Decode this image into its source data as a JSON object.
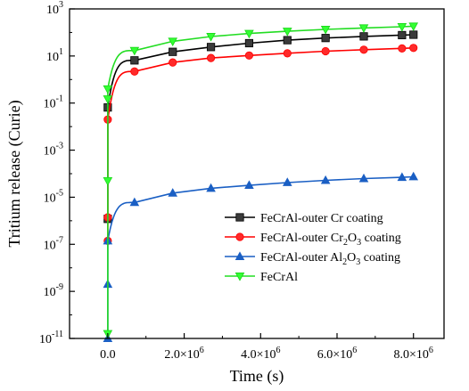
{
  "chart_data": {
    "type": "line",
    "xlabel": "Time (s)",
    "ylabel": "Tritium release (Curie)",
    "x_scale": "linear",
    "y_scale": "log",
    "xlim": [
      -1000000,
      8800000
    ],
    "ylim": [
      1e-11,
      1000
    ],
    "x_ticks": [
      {
        "value": 0,
        "mantissa": "0.0",
        "exp": ""
      },
      {
        "value": 2000000,
        "mantissa": "2.0×10",
        "exp": "6"
      },
      {
        "value": 4000000,
        "mantissa": "4.0×10",
        "exp": "6"
      },
      {
        "value": 6000000,
        "mantissa": "6.0×10",
        "exp": "6"
      },
      {
        "value": 8000000,
        "mantissa": "8.0×10",
        "exp": "6"
      }
    ],
    "y_ticks": [
      {
        "value": 1e-11,
        "base": "10",
        "exp": "-11"
      },
      {
        "value": 1e-09,
        "base": "10",
        "exp": "-9"
      },
      {
        "value": 1e-07,
        "base": "10",
        "exp": "-7"
      },
      {
        "value": 1e-05,
        "base": "10",
        "exp": "-5"
      },
      {
        "value": 0.001,
        "base": "10",
        "exp": "-3"
      },
      {
        "value": 0.1,
        "base": "10",
        "exp": "-1"
      },
      {
        "value": 10,
        "base": "10",
        "exp": "1"
      },
      {
        "value": 1000,
        "base": "10",
        "exp": "3"
      }
    ],
    "grid": false,
    "legend_position": "lower-right",
    "series": [
      {
        "name": "FeCrAl-outer Cr coating",
        "label_parts": [
          {
            "t": "FeCrAl-outer Cr coating",
            "sub": false
          }
        ],
        "color": "#000000",
        "line_color": "#000000",
        "marker_fill": "#3a3a3a",
        "marker": "square",
        "x": [
          0,
          0,
          700000,
          1700000,
          2700000,
          3700000,
          4700000,
          5700000,
          6700000,
          7700000,
          8000000
        ],
        "y": [
          1.2e-06,
          0.065,
          6.5,
          15,
          24,
          35,
          47,
          58,
          68,
          77,
          80
        ]
      },
      {
        "name": "FeCrAl-outer Cr2O3 coating",
        "label_parts": [
          {
            "t": "FeCrAl-outer Cr",
            "sub": false
          },
          {
            "t": "2",
            "sub": true
          },
          {
            "t": "O",
            "sub": false
          },
          {
            "t": "3",
            "sub": true
          },
          {
            "t": " coating",
            "sub": false
          }
        ],
        "color": "#ff0000",
        "line_color": "#ff0000",
        "marker_fill": "#ff2a2a",
        "marker": "circle",
        "x": [
          0,
          0,
          0,
          700000,
          1700000,
          2700000,
          3700000,
          4700000,
          5700000,
          6700000,
          7700000,
          8000000
        ],
        "y": [
          1.4e-07,
          1.4e-06,
          0.02,
          2.2,
          5.3,
          8.2,
          10.5,
          13,
          16,
          18.5,
          21,
          22
        ]
      },
      {
        "name": "FeCrAl-outer Al2O3 coating",
        "label_parts": [
          {
            "t": "FeCrAl-outer Al",
            "sub": false
          },
          {
            "t": "2",
            "sub": true
          },
          {
            "t": "O",
            "sub": false
          },
          {
            "t": "3",
            "sub": true
          },
          {
            "t": " coating",
            "sub": false
          }
        ],
        "color": "#1a5fc4",
        "line_color": "#1a5fc4",
        "marker_fill": "#1a5fc4",
        "marker": "triangle-up",
        "x": [
          0,
          0,
          0,
          700000,
          1700000,
          2700000,
          3700000,
          4700000,
          5700000,
          6700000,
          7700000,
          8000000
        ],
        "y": [
          1e-11,
          2e-09,
          1.4e-07,
          6e-06,
          1.5e-05,
          2.4e-05,
          3.2e-05,
          4.2e-05,
          5.2e-05,
          6.2e-05,
          7e-05,
          7.4e-05
        ]
      },
      {
        "name": "FeCrAl",
        "label_parts": [
          {
            "t": "FeCrAl",
            "sub": false
          }
        ],
        "color": "#1ad61a",
        "line_color": "#22dd22",
        "marker_fill": "#33ff33",
        "marker": "triangle-down",
        "x": [
          0,
          0,
          0,
          0,
          700000,
          1700000,
          2700000,
          3700000,
          4700000,
          5700000,
          6700000,
          7700000,
          8000000
        ],
        "y": [
          1.6e-11,
          5e-05,
          0.15,
          0.4,
          17,
          42,
          67,
          90,
          112,
          135,
          155,
          175,
          185
        ]
      }
    ]
  }
}
